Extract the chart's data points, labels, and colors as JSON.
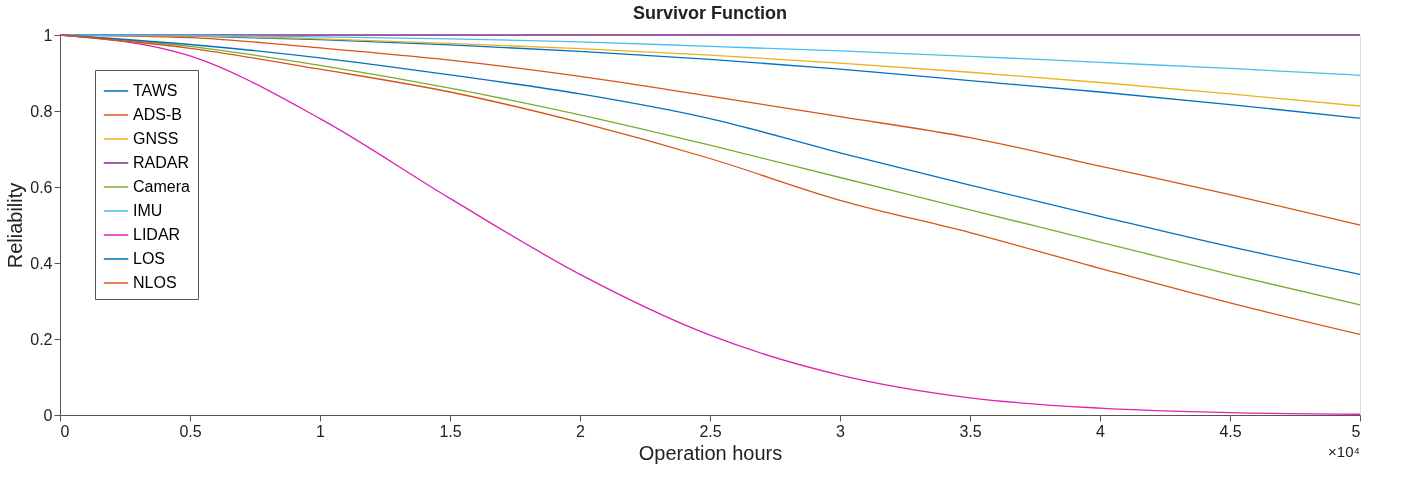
{
  "chart_data": {
    "type": "line",
    "title": "Survivor Function",
    "xlabel": "Operation hours",
    "ylabel": "Reliability",
    "annotations": [
      "×10⁴"
    ],
    "x": [
      0,
      0.5,
      1,
      1.5,
      2,
      2.5,
      3,
      3.5,
      4,
      4.5,
      5
    ],
    "series": [
      {
        "name": "TAWS",
        "color": "#0072bd",
        "values": [
          1,
          0.997,
          0.988,
          0.974,
          0.957,
          0.936,
          0.91,
          0.88,
          0.85,
          0.817,
          0.781
        ]
      },
      {
        "name": "ADS-B",
        "color": "#d95319",
        "values": [
          1,
          0.993,
          0.966,
          0.934,
          0.891,
          0.839,
          0.785,
          0.73,
          0.655,
          0.58,
          0.5
        ]
      },
      {
        "name": "GNSS",
        "color": "#edb120",
        "values": [
          1,
          0.998,
          0.99,
          0.978,
          0.964,
          0.947,
          0.926,
          0.902,
          0.875,
          0.845,
          0.813
        ]
      },
      {
        "name": "RADAR",
        "color": "#7e2f8e",
        "values": [
          1,
          1,
          1,
          1,
          1,
          1,
          1,
          1,
          1,
          1,
          1
        ]
      },
      {
        "name": "Camera",
        "color": "#77ac30",
        "values": [
          1,
          0.97,
          0.92,
          0.86,
          0.79,
          0.71,
          0.625,
          0.54,
          0.455,
          0.37,
          0.29
        ]
      },
      {
        "name": "IMU",
        "color": "#4dbeee",
        "values": [
          1,
          0.999,
          0.995,
          0.99,
          0.982,
          0.97,
          0.958,
          0.944,
          0.928,
          0.912,
          0.894
        ]
      },
      {
        "name": "LIDAR",
        "color": "#e020b0",
        "values": [
          1,
          0.945,
          0.78,
          0.57,
          0.37,
          0.21,
          0.105,
          0.045,
          0.018,
          0.006,
          0.002
        ]
      },
      {
        "name": "LOS",
        "color": "#0072bd",
        "values": [
          1,
          0.975,
          0.94,
          0.895,
          0.845,
          0.78,
          0.69,
          0.605,
          0.523,
          0.443,
          0.37
        ]
      },
      {
        "name": "NLOS",
        "color": "#d95319",
        "values": [
          1,
          0.965,
          0.91,
          0.85,
          0.77,
          0.675,
          0.565,
          0.48,
          0.386,
          0.295,
          0.212
        ]
      }
    ],
    "xlim": [
      0,
      5
    ],
    "xticks": [
      0,
      0.5,
      1,
      1.5,
      2,
      2.5,
      3,
      3.5,
      4,
      4.5,
      5
    ],
    "ylim": [
      0,
      1
    ],
    "yticks": [
      0,
      0.2,
      0.4,
      0.6,
      0.8,
      1
    ],
    "grid": false,
    "legend": "top left",
    "marker": "none",
    "line_style": "solid"
  }
}
